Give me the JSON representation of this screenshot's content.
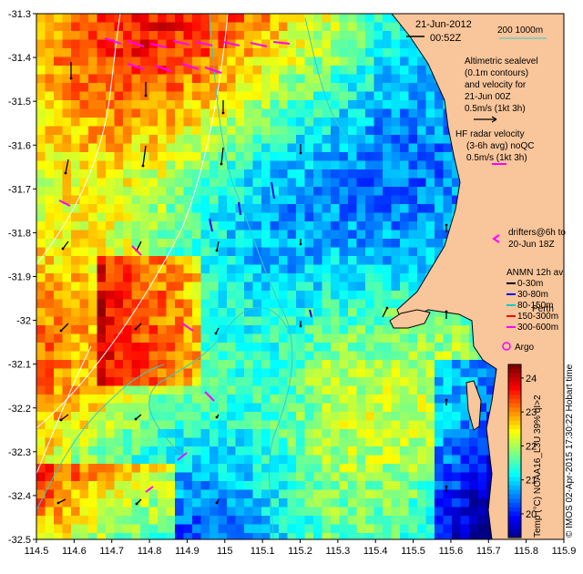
{
  "title": {
    "date": "21-Jun-2012",
    "time": "00:52Z",
    "scale_label": "200  1000m"
  },
  "altimetric_note": [
    "Altimetric sealevel",
    "(0.1m contours)",
    "and velocity for",
    "21-Jun 00Z",
    "0.5m/s (1kt 3h)"
  ],
  "hf_note": [
    "HF radar velocity",
    "(3-6h avg) noQC",
    "0.5m/s (1kt 3h)"
  ],
  "drifters_note": [
    "drifters@6h to",
    "20-Jun 18Z"
  ],
  "anmn": {
    "title": "ANMN 12h av.",
    "items": [
      {
        "label": "0-30m",
        "color": "#000000"
      },
      {
        "label": "30-80m",
        "color": "#0000ff"
      },
      {
        "label": "80-150m",
        "color": "#00cccc"
      },
      {
        "label": "150-300m",
        "color": "#ff0000"
      },
      {
        "label": "300-600m",
        "color": "#ff00ff"
      }
    ]
  },
  "argo_label": "Argo",
  "place_label": "Perth",
  "colorbar": {
    "label": "Temp (°C) NOAA16_L3U 39% qI>2",
    "ticks": [
      20,
      21,
      22,
      23,
      24
    ],
    "range": [
      19.3,
      24.4
    ]
  },
  "credit": "© IMOS 02-Apr-2015 17:30:22 Hobart time",
  "axes": {
    "x_ticks": [
      "114.5",
      "114.6",
      "114.7",
      "114.8",
      "114.9",
      "115",
      "115.1",
      "115.2",
      "115.3",
      "115.4",
      "115.5",
      "115.6",
      "115.7",
      "115.8",
      "115.9"
    ],
    "y_ticks": [
      "-31.3",
      "-31.4",
      "-31.5",
      "-31.6",
      "-31.7",
      "-31.8",
      "-31.9",
      "-32",
      "-32.1",
      "-32.2",
      "-32.3",
      "-32.4",
      "-32.5"
    ],
    "lon_range": [
      114.5,
      115.9
    ],
    "lat_range": [
      -32.5,
      -31.3
    ]
  },
  "colors": {
    "land": "#f9c59a",
    "coast": "#000000",
    "contour_cyan": "#33cccc",
    "contour_white": "#ffffff",
    "drifter": "#ff00ff"
  }
}
